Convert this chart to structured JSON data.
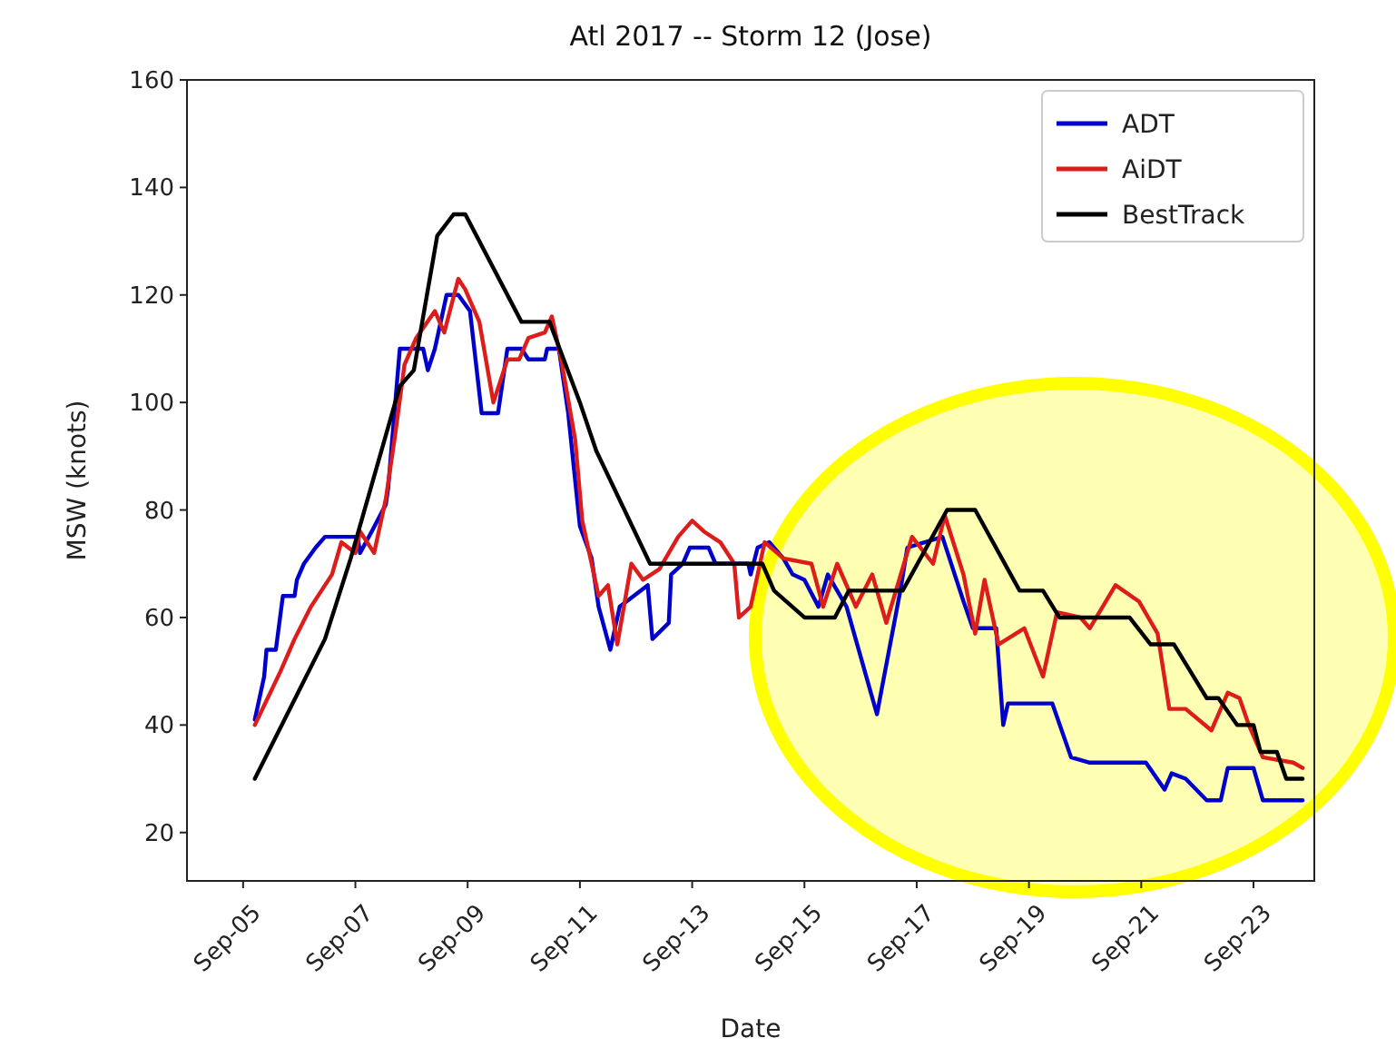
{
  "chart_data": {
    "type": "line",
    "title": "Atl 2017 -- Storm 12 (Jose)",
    "xlabel": "Date",
    "ylabel": "MSW (knots)",
    "xlim": [
      "2017-09-04",
      "2017-09-24T02:00"
    ],
    "xticks": [
      {
        "value": "2017-09-05",
        "label": "Sep-05"
      },
      {
        "value": "2017-09-07",
        "label": "Sep-07"
      },
      {
        "value": "2017-09-09",
        "label": "Sep-09"
      },
      {
        "value": "2017-09-11",
        "label": "Sep-11"
      },
      {
        "value": "2017-09-13",
        "label": "Sep-13"
      },
      {
        "value": "2017-09-15",
        "label": "Sep-15"
      },
      {
        "value": "2017-09-17",
        "label": "Sep-17"
      },
      {
        "value": "2017-09-19",
        "label": "Sep-19"
      },
      {
        "value": "2017-09-21",
        "label": "Sep-21"
      },
      {
        "value": "2017-09-23",
        "label": "Sep-23"
      }
    ],
    "ylim": [
      11,
      160
    ],
    "yticks": [
      20,
      40,
      60,
      80,
      100,
      120,
      140,
      160
    ],
    "grid": false,
    "legend": "top right",
    "marker": "none",
    "line_style": "solid",
    "series": [
      {
        "name": "ADT",
        "color": "#0000cc",
        "x": [
          "2017-09-05T05:00",
          "2017-09-05T09:00",
          "2017-09-05T10:00",
          "2017-09-05T14:00",
          "2017-09-05T17:00",
          "2017-09-05T22:00",
          "2017-09-05T23:00",
          "2017-09-06T02:00",
          "2017-09-06T07:00",
          "2017-09-06T11:00",
          "2017-09-07T01:00",
          "2017-09-07T02:00",
          "2017-09-07T07:00",
          "2017-09-07T13:00",
          "2017-09-07T14:00",
          "2017-09-07T19:00",
          "2017-09-08T05:00",
          "2017-09-08T07:00",
          "2017-09-08T10:00",
          "2017-09-08T15:00",
          "2017-09-08T20:00",
          "2017-09-09T01:00",
          "2017-09-09T06:00",
          "2017-09-09T13:00",
          "2017-09-09T17:00",
          "2017-09-09T23:00",
          "2017-09-10T02:00",
          "2017-09-10T09:00",
          "2017-09-10T10:00",
          "2017-09-10T15:00",
          "2017-09-10T19:00",
          "2017-09-11T00:00",
          "2017-09-11T05:00",
          "2017-09-11T08:00",
          "2017-09-11T13:00",
          "2017-09-11T17:00",
          "2017-09-12T05:00",
          "2017-09-12T07:00",
          "2017-09-12T14:00",
          "2017-09-12T15:00",
          "2017-09-12T20:00",
          "2017-09-12T23:00",
          "2017-09-13T07:00",
          "2017-09-13T10:00",
          "2017-09-14T00:00",
          "2017-09-14T01:00",
          "2017-09-14T04:00",
          "2017-09-14T09:00",
          "2017-09-14T15:00",
          "2017-09-14T19:00",
          "2017-09-15T00:00",
          "2017-09-15T06:00",
          "2017-09-15T10:00",
          "2017-09-15T18:00",
          "2017-09-16T07:00",
          "2017-09-16T17:00",
          "2017-09-16T20:00",
          "2017-09-17T11:00",
          "2017-09-17T20:00",
          "2017-09-18T00:00",
          "2017-09-18T10:00",
          "2017-09-18T13:00",
          "2017-09-18T15:00",
          "2017-09-19T10:00",
          "2017-09-19T18:00",
          "2017-09-20T02:00",
          "2017-09-21T02:00",
          "2017-09-21T10:00",
          "2017-09-21T13:00",
          "2017-09-21T19:00",
          "2017-09-22T04:00",
          "2017-09-22T10:00",
          "2017-09-22T13:00",
          "2017-09-23T00:00",
          "2017-09-23T04:00",
          "2017-09-23T21:00"
        ],
        "values": [
          41,
          49,
          54,
          54,
          64,
          64,
          67,
          70,
          73,
          75,
          75,
          72,
          76,
          81,
          84,
          110,
          110,
          106,
          110,
          120,
          120,
          117,
          98,
          98,
          110,
          110,
          108,
          108,
          110,
          110,
          98,
          77,
          71,
          62,
          54,
          62,
          66,
          56,
          59,
          68,
          70,
          73,
          73,
          70,
          70,
          68,
          73,
          74,
          71,
          68,
          67,
          62,
          68,
          62,
          42,
          65,
          73,
          75,
          63,
          58,
          58,
          40,
          44,
          44,
          34,
          33,
          33,
          28,
          31,
          30,
          26,
          26,
          32,
          32,
          26,
          26
        ]
      },
      {
        "name": "AiDT",
        "color": "#dd1c1c",
        "x": [
          "2017-09-05T05:00",
          "2017-09-05T16:00",
          "2017-09-05T22:00",
          "2017-09-06T05:00",
          "2017-09-06T14:00",
          "2017-09-06T18:00",
          "2017-09-07T00:00",
          "2017-09-07T02:00",
          "2017-09-07T08:00",
          "2017-09-07T13:00",
          "2017-09-07T17:00",
          "2017-09-07T21:00",
          "2017-09-08T02:00",
          "2017-09-08T10:00",
          "2017-09-08T14:00",
          "2017-09-08T20:00",
          "2017-09-08T23:00",
          "2017-09-09T05:00",
          "2017-09-09T11:00",
          "2017-09-09T17:00",
          "2017-09-09T22:00",
          "2017-09-10T02:00",
          "2017-09-10T09:00",
          "2017-09-10T12:00",
          "2017-09-10T16:00",
          "2017-09-10T22:00",
          "2017-09-11T01:00",
          "2017-09-11T08:00",
          "2017-09-11T12:00",
          "2017-09-11T16:00",
          "2017-09-11T22:00",
          "2017-09-12T03:00",
          "2017-09-12T10:00",
          "2017-09-12T18:00",
          "2017-09-13T00:00",
          "2017-09-13T05:00",
          "2017-09-13T12:00",
          "2017-09-13T18:00",
          "2017-09-13T20:00",
          "2017-09-14T01:00",
          "2017-09-14T07:00",
          "2017-09-14T15:00",
          "2017-09-15T03:00",
          "2017-09-15T08:00",
          "2017-09-15T14:00",
          "2017-09-15T22:00",
          "2017-09-16T05:00",
          "2017-09-16T11:00",
          "2017-09-16T22:00",
          "2017-09-17T07:00",
          "2017-09-17T12:00",
          "2017-09-17T20:00",
          "2017-09-18T01:00",
          "2017-09-18T05:00",
          "2017-09-18T11:00",
          "2017-09-18T22:00",
          "2017-09-19T06:00",
          "2017-09-19T12:00",
          "2017-09-19T22:00",
          "2017-09-20T02:00",
          "2017-09-20T13:00",
          "2017-09-20T23:00",
          "2017-09-21T07:00",
          "2017-09-21T12:00",
          "2017-09-21T19:00",
          "2017-09-22T06:00",
          "2017-09-22T13:00",
          "2017-09-22T18:00",
          "2017-09-22T22:00",
          "2017-09-23T04:00",
          "2017-09-23T17:00",
          "2017-09-23T21:00"
        ],
        "values": [
          40,
          50,
          56,
          62,
          68,
          74,
          72,
          76,
          72,
          82,
          94,
          107,
          112,
          117,
          113,
          123,
          121,
          115,
          100,
          108,
          108,
          112,
          113,
          116,
          108,
          93,
          78,
          64,
          66,
          55,
          70,
          67,
          69,
          75,
          78,
          76,
          74,
          70,
          60,
          62,
          74,
          71,
          70,
          62,
          70,
          62,
          68,
          59,
          75,
          70,
          79,
          68,
          57,
          67,
          55,
          58,
          49,
          61,
          60,
          58,
          66,
          63,
          57,
          43,
          43,
          39,
          46,
          45,
          40,
          34,
          33,
          32
        ]
      },
      {
        "name": "BestTrack",
        "color": "#000000",
        "x": [
          "2017-09-05T05:00",
          "2017-09-06T11:00",
          "2017-09-06T22:00",
          "2017-09-07T19:00",
          "2017-09-08T01:00",
          "2017-09-08T11:00",
          "2017-09-08T18:00",
          "2017-09-08T23:00",
          "2017-09-09T23:00",
          "2017-09-10T11:00",
          "2017-09-11T00:00",
          "2017-09-11T07:00",
          "2017-09-12T06:00",
          "2017-09-14T06:00",
          "2017-09-14T11:00",
          "2017-09-15T00:00",
          "2017-09-15T13:00",
          "2017-09-15T19:00",
          "2017-09-16T18:00",
          "2017-09-17T13:00",
          "2017-09-18T01:00",
          "2017-09-18T20:00",
          "2017-09-19T06:00",
          "2017-09-19T13:00",
          "2017-09-20T19:00",
          "2017-09-21T04:00",
          "2017-09-21T14:00",
          "2017-09-22T04:00",
          "2017-09-22T09:00",
          "2017-09-22T17:00",
          "2017-09-23T00:00",
          "2017-09-23T03:00",
          "2017-09-23T10:00",
          "2017-09-23T14:00",
          "2017-09-23T21:00"
        ],
        "values": [
          30,
          56,
          71,
          103,
          106,
          131,
          135,
          135,
          115,
          115,
          100,
          91,
          70,
          70,
          65,
          60,
          60,
          65,
          65,
          80,
          80,
          65,
          65,
          60,
          60,
          55,
          55,
          45,
          45,
          40,
          40,
          35,
          35,
          30,
          30
        ]
      }
    ]
  }
}
